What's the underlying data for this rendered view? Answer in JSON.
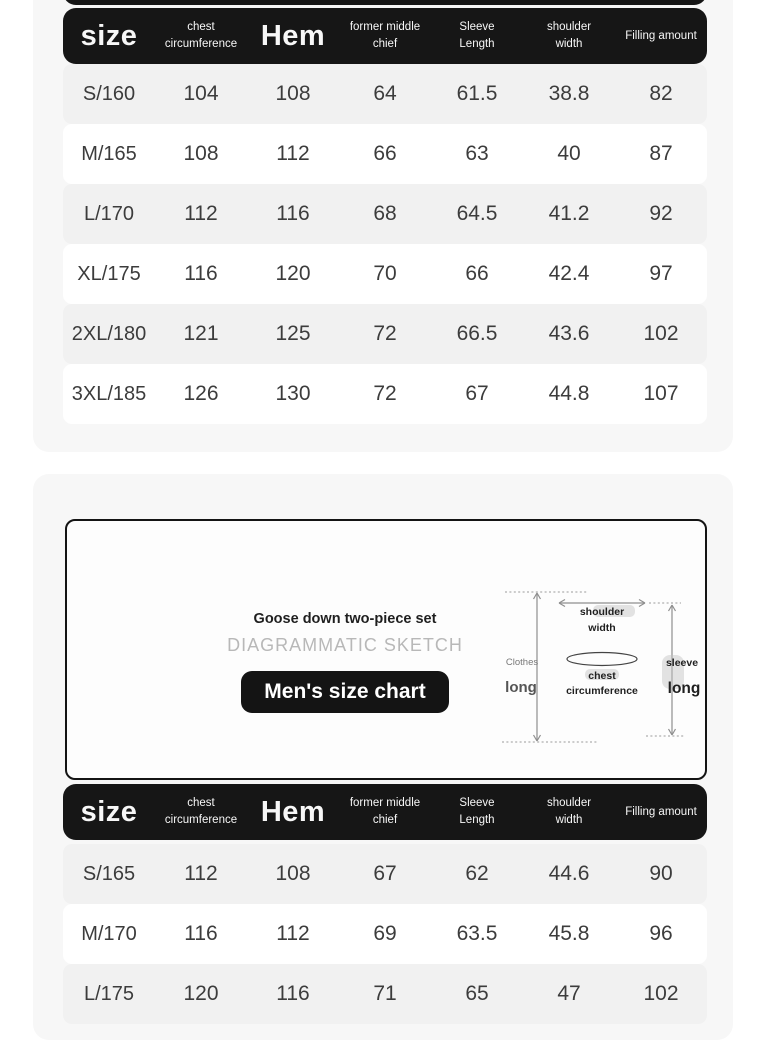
{
  "colors": {
    "header_bg": "#161616",
    "panel_bg": "#f7f7f7",
    "row_gray": "#f1f1f1",
    "row_white": "#ffffff",
    "text_dark": "#3c3c3c",
    "muted_gray": "#b8b8b8"
  },
  "columns": [
    {
      "lines": [
        "size"
      ],
      "large": true
    },
    {
      "lines": [
        "chest",
        "circumference"
      ],
      "large": false
    },
    {
      "lines": [
        "Hem"
      ],
      "large": true
    },
    {
      "lines": [
        "former middle",
        "chief"
      ],
      "large": false
    },
    {
      "lines": [
        "Sleeve",
        "Length"
      ],
      "large": false
    },
    {
      "lines": [
        "shoulder",
        "width"
      ],
      "large": false
    },
    {
      "lines": [
        "Filling amount"
      ],
      "large": false
    }
  ],
  "table1": {
    "rows": [
      [
        "S/160",
        "104",
        "108",
        "64",
        "61.5",
        "38.8",
        "82"
      ],
      [
        "M/165",
        "108",
        "112",
        "66",
        "63",
        "40",
        "87"
      ],
      [
        "L/170",
        "112",
        "116",
        "68",
        "64.5",
        "41.2",
        "92"
      ],
      [
        "XL/175",
        "116",
        "120",
        "70",
        "66",
        "42.4",
        "97"
      ],
      [
        "2XL/180",
        "121",
        "125",
        "72",
        "66.5",
        "43.6",
        "102"
      ],
      [
        "3XL/185",
        "126",
        "130",
        "72",
        "67",
        "44.8",
        "107"
      ]
    ]
  },
  "info_card": {
    "subtitle": "Goose down two-piece set",
    "sketch_label": "DIAGRAMMATIC SKETCH",
    "button_label": "Men's size chart"
  },
  "diagram": {
    "clothes_line1": "Clothes",
    "clothes_line2": "long",
    "shoulder_line1": "shoulder",
    "shoulder_line2": "width",
    "chest_line1": "chest",
    "chest_line2": "circumference",
    "sleeve_line1": "sleeve",
    "sleeve_line2": "long"
  },
  "table2": {
    "rows": [
      [
        "S/165",
        "112",
        "108",
        "67",
        "62",
        "44.6",
        "90"
      ],
      [
        "M/170",
        "116",
        "112",
        "69",
        "63.5",
        "45.8",
        "96"
      ],
      [
        "L/175",
        "120",
        "116",
        "71",
        "65",
        "47",
        "102"
      ]
    ]
  }
}
